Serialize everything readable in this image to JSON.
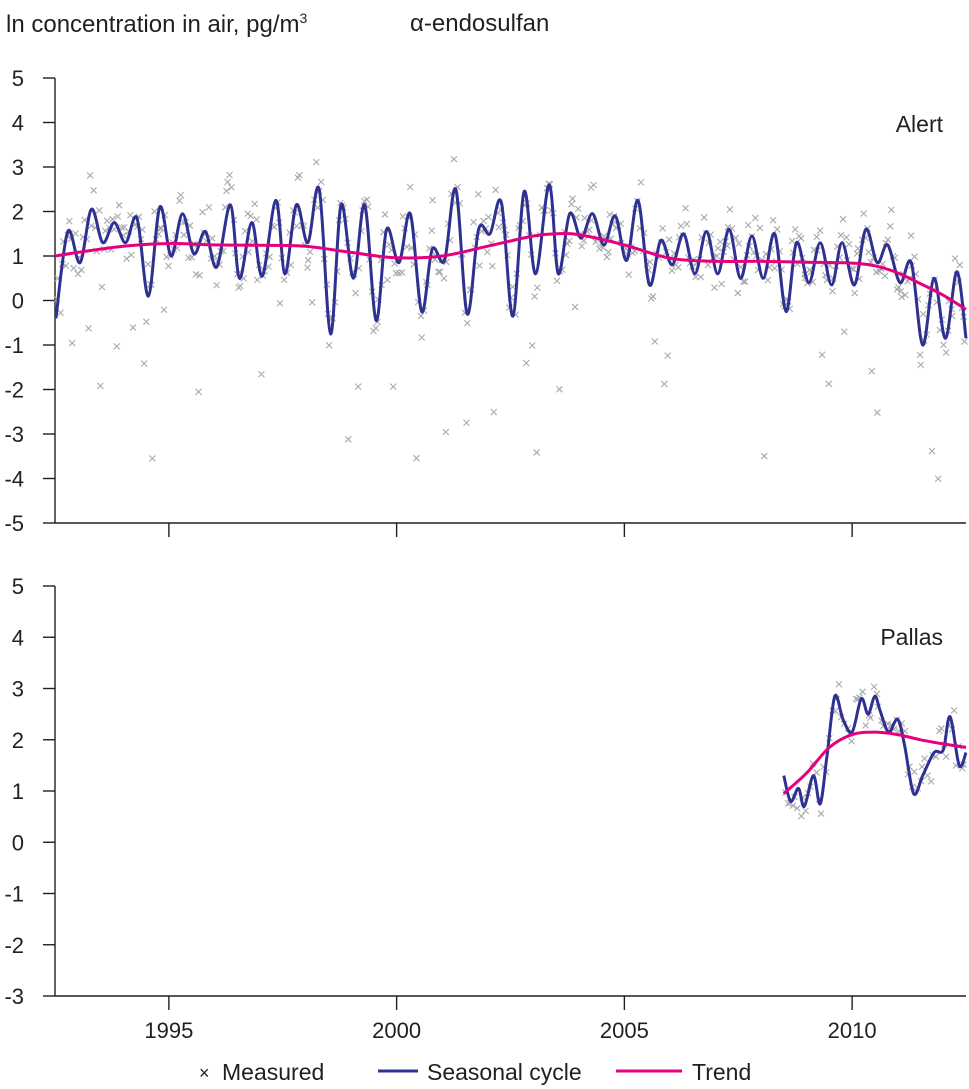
{
  "header": {
    "ylabel_main": "ln concentration in air, pg/m",
    "ylabel_sup": "3",
    "compound": "α-endosulfan"
  },
  "legend": {
    "measured": "Measured",
    "seasonal": "Seasonal cycle",
    "trend": "Trend"
  },
  "colors": {
    "measured": "#a7a9ac",
    "seasonal": "#2e3192",
    "trend": "#e6007e",
    "axis": "#231f20"
  },
  "chart_data": [
    {
      "type": "line",
      "station": "Alert",
      "ylabel": "ln concentration in air, pg/m3",
      "xlim": [
        1992.5,
        2012.5
      ],
      "ylim": [
        -5,
        5
      ],
      "yticks": [
        5,
        4,
        3,
        2,
        1,
        0,
        -1,
        -2,
        -3,
        -4,
        -5
      ],
      "xticks": [
        1995,
        2000,
        2005,
        2010
      ],
      "trend": {
        "x": [
          1992.5,
          1993,
          1994,
          1995,
          1996,
          1997,
          1998,
          1999,
          2000,
          2001,
          2002,
          2003,
          2003.5,
          2004,
          2005,
          2006,
          2007,
          2008,
          2009,
          2010,
          2010.5,
          2011,
          2011.5,
          2012,
          2012.5
        ],
        "y": [
          1.0,
          1.08,
          1.22,
          1.28,
          1.25,
          1.24,
          1.22,
          1.08,
          0.96,
          1.0,
          1.22,
          1.45,
          1.5,
          1.48,
          1.25,
          0.95,
          0.88,
          0.88,
          0.86,
          0.84,
          0.78,
          0.62,
          0.38,
          0.12,
          -0.2
        ]
      },
      "seasonal": {
        "peaks_x": [
          1992.78,
          1993.3,
          1993.8,
          1994.3,
          1994.8,
          1995.3,
          1995.8,
          1996.35,
          1996.82,
          1997.35,
          1997.8,
          1998.3,
          1998.78,
          1999.3,
          1999.78,
          2000.3,
          2000.78,
          2001.3,
          2001.8,
          2002.3,
          2002.8,
          2003.35,
          2003.8,
          2004.3,
          2004.8,
          2005.3,
          2005.8,
          2006.3,
          2006.8,
          2007.3,
          2007.8,
          2008.3,
          2008.78,
          2009.3,
          2009.78,
          2010.3,
          2010.78,
          2011.3,
          2011.8,
          2012.3
        ],
        "peaks_y": [
          1.55,
          2.05,
          1.75,
          1.85,
          2.1,
          1.95,
          1.55,
          2.15,
          1.75,
          2.25,
          2.15,
          2.5,
          2.15,
          2.15,
          1.6,
          1.95,
          1.15,
          2.5,
          1.6,
          2.2,
          2.45,
          2.6,
          1.95,
          1.95,
          1.9,
          2.25,
          1.35,
          1.5,
          1.55,
          1.6,
          1.45,
          1.5,
          1.3,
          1.3,
          1.3,
          1.6,
          1.25,
          0.85,
          0.5,
          0.65
        ],
        "troughs_x": [
          1992.52,
          1993.05,
          1993.55,
          1994.05,
          1994.55,
          1995.05,
          1995.55,
          1996.05,
          1996.55,
          1997.05,
          1997.55,
          1998.05,
          1998.55,
          1999.05,
          1999.55,
          2000.05,
          2000.55,
          2001.05,
          2001.55,
          2002.05,
          2002.55,
          2003.05,
          2003.55,
          2004.05,
          2004.55,
          2005.05,
          2005.55,
          2006.05,
          2006.55,
          2007.05,
          2007.55,
          2008.05,
          2008.55,
          2009.05,
          2009.55,
          2010.05,
          2010.55,
          2011.05,
          2011.55,
          2012.05,
          2012.5
        ],
        "troughs_y": [
          -0.4,
          0.85,
          1.3,
          1.3,
          0.1,
          1.0,
          1.05,
          0.75,
          0.5,
          0.55,
          0.6,
          1.3,
          -0.75,
          0.5,
          -0.45,
          0.85,
          -0.25,
          0.9,
          -0.3,
          1.5,
          -0.35,
          0.6,
          0.6,
          1.4,
          1.25,
          0.9,
          0.35,
          0.8,
          0.6,
          0.6,
          0.5,
          0.5,
          -0.25,
          0.4,
          0.35,
          0.35,
          0.85,
          0.4,
          -1.0,
          -0.85,
          -0.85
        ]
      },
      "measured_note": "scattered monthly samples, mostly between -1 and 3, outliers down to -4.1 and up to 3.4"
    },
    {
      "type": "line",
      "station": "Pallas",
      "xlim": [
        1992.5,
        2012.5
      ],
      "ylim": [
        -3,
        5
      ],
      "yticks": [
        5,
        4,
        3,
        2,
        1,
        0,
        -1,
        -2,
        -3
      ],
      "xticks": [
        1995,
        2000,
        2005,
        2010
      ],
      "trend": {
        "x": [
          2008.5,
          2009.0,
          2009.5,
          2010.0,
          2010.5,
          2011.0,
          2011.5,
          2012.0,
          2012.5
        ],
        "y": [
          0.95,
          1.35,
          1.85,
          2.1,
          2.15,
          2.1,
          2.0,
          1.92,
          1.85
        ]
      },
      "seasonal": {
        "x": [
          2008.5,
          2008.65,
          2008.82,
          2008.95,
          2009.15,
          2009.3,
          2009.45,
          2009.62,
          2009.8,
          2010.0,
          2010.2,
          2010.35,
          2010.5,
          2010.62,
          2010.8,
          2011.0,
          2011.15,
          2011.35,
          2011.55,
          2011.8,
          2012.0,
          2012.15,
          2012.35,
          2012.5
        ],
        "y": [
          1.3,
          0.8,
          1.05,
          0.7,
          1.3,
          0.75,
          1.7,
          2.85,
          2.4,
          2.15,
          2.8,
          2.5,
          2.85,
          2.55,
          2.15,
          2.4,
          1.9,
          0.95,
          1.3,
          1.75,
          1.8,
          2.45,
          1.5,
          1.75
        ]
      },
      "measured_note": "monthly samples 2008.5-2012.5, range about 0.6 to 3.1"
    }
  ]
}
